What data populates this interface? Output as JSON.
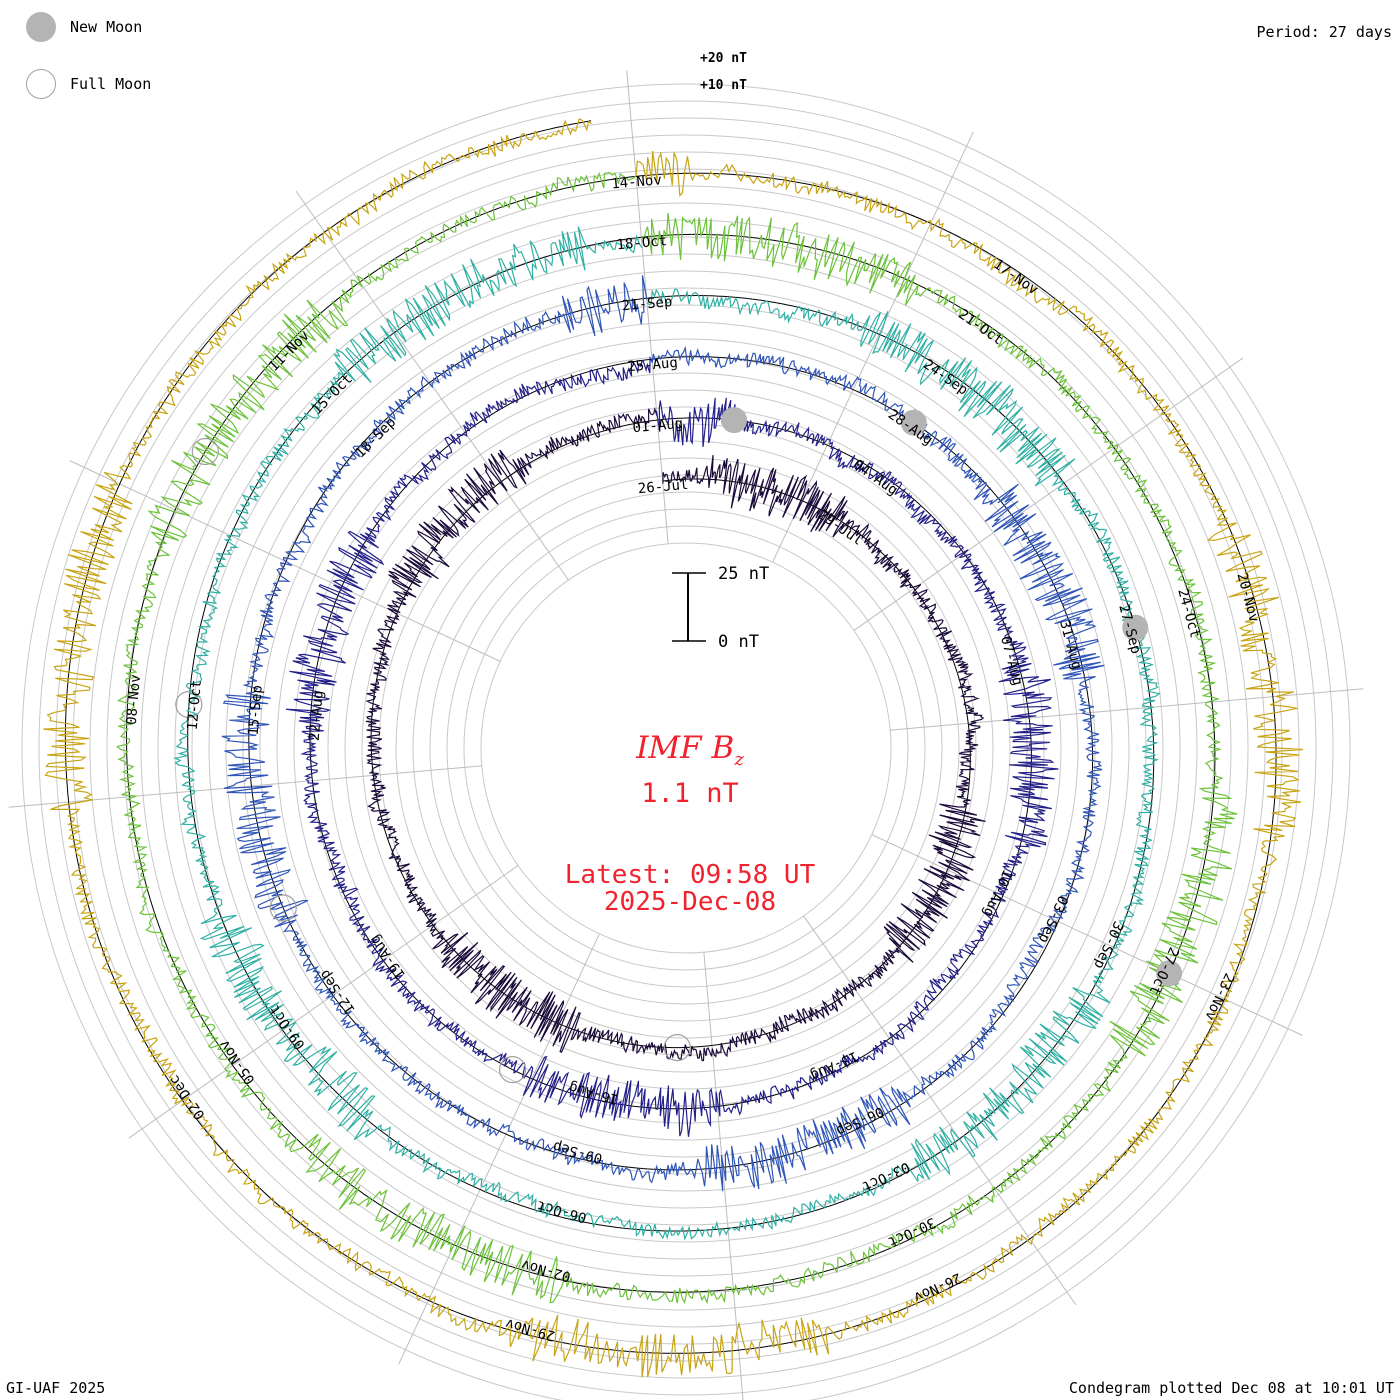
{
  "legend": {
    "new_moon": "New Moon",
    "full_moon": "Full Moon"
  },
  "period": "Period: 27 days",
  "footer_left": "GI-UAF 2025",
  "footer_right": "Condegram plotted Dec 08 at 10:01 UT",
  "scale_top": {
    "plus20": "+20 nT",
    "plus10": "+10 nT"
  },
  "scale_bar": {
    "top": "25 nT",
    "bottom": "0 nT"
  },
  "center": {
    "label": "IMF B",
    "subscript": "z",
    "value": "1.1 nT",
    "latest": "Latest: 09:58 UT",
    "date": "2025-Dec-08"
  },
  "colors": {
    "accent": "#f0222e",
    "new_moon": "#b4b4b4",
    "grid": "#c8c8c8",
    "spokes": "#bdbdbd"
  },
  "chart_data": {
    "type": "line",
    "title": "IMF Bz condegram",
    "period_days": 27,
    "start": "2025-Jul-26",
    "end": "2025-Dec-08",
    "units": "nT",
    "spoke_count": 12,
    "cycles": [
      {
        "index": 1,
        "color": "#1a0a3a",
        "labels": [
          "26-Jul",
          "29-Jul"
        ]
      },
      {
        "index": 2,
        "color": "#24208a",
        "labels": [
          "01-Aug",
          "04-Aug",
          "07-Aug",
          "10-Aug",
          "13-Aug",
          "16-Aug",
          "19-Aug",
          "22-Aug"
        ]
      },
      {
        "index": 3,
        "color": "#2f55b8",
        "labels": [
          "25-Aug",
          "28-Aug",
          "31-Aug",
          "03-Sep",
          "06-Sep",
          "09-Sep",
          "12-Sep",
          "15-Sep",
          "18-Sep"
        ]
      },
      {
        "index": 4,
        "color": "#2fb0a4",
        "labels": [
          "21-Sep",
          "24-Sep",
          "27-Sep",
          "30-Sep",
          "03-Oct",
          "06-Oct",
          "09-Oct",
          "12-Oct",
          "15-Oct"
        ]
      },
      {
        "index": 5,
        "color": "#6cc23a",
        "labels": [
          "18-Oct",
          "21-Oct",
          "24-Oct",
          "27-Oct",
          "30-Oct",
          "02-Nov",
          "05-Nov",
          "08-Nov",
          "11-Nov"
        ]
      },
      {
        "index": 6,
        "color": "#c8a414",
        "labels": [
          "14-Nov",
          "17-Nov",
          "20-Nov",
          "23-Nov",
          "26-Nov",
          "29-Nov",
          "02-Dec"
        ]
      }
    ],
    "visible_date_labels": [
      "26-Jul",
      "29-Jul",
      "01-Aug",
      "04-Aug",
      "07-Aug",
      "10-Aug",
      "13-Aug",
      "16-Aug",
      "19-Aug",
      "22-Aug",
      "25-Aug",
      "28-Aug",
      "31-Aug",
      "03-Sep",
      "06-Sep",
      "09-Sep",
      "12-Sep",
      "15-Sep",
      "18-Sep",
      "21-Sep",
      "24-Sep",
      "27-Sep",
      "30-Sep",
      "03-Oct",
      "06-Oct",
      "09-Oct",
      "12-Oct",
      "15-Oct",
      "18-Oct",
      "21-Oct",
      "24-Oct",
      "27-Oct",
      "30-Oct",
      "02-Nov",
      "05-Nov",
      "08-Nov",
      "11-Nov",
      "14-Nov",
      "17-Nov",
      "20-Nov",
      "23-Nov",
      "26-Nov",
      "29-Nov",
      "02-Dec"
    ],
    "new_moons": [
      "2025-Jul-24",
      "2025-Aug-23",
      "2025-Sep-21",
      "2025-Oct-21",
      "2025-Nov-20"
    ],
    "full_moons": [
      "2025-Aug-09",
      "2025-Sep-07",
      "2025-Oct-07",
      "2025-Nov-05",
      "2025-Dec-04"
    ],
    "typical_range_nT": [
      -25,
      25
    ],
    "latest_value_nT": 1.1
  }
}
